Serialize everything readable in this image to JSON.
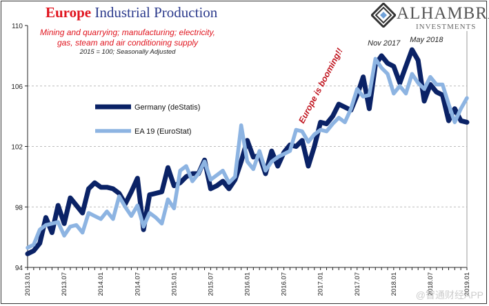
{
  "title": {
    "part1": "Europe",
    "part2": "Industrial Production"
  },
  "subtitle_line1": "Mining and quarrying; manufacturing; electricity,",
  "subtitle_line2": "gas, steam and air conditioning supply",
  "note": "2015 = 100; Seasonally Adjusted",
  "logo": {
    "name": "ALHAMBRA",
    "sub": "INVESTMENTS",
    "icon": "diamond-lattice-icon"
  },
  "watermark": "@智通财经APP",
  "colors": {
    "germany": "#0a2266",
    "ea19": "#8db4e2",
    "title_red": "#e0141e",
    "title_blue": "#2b3a8c",
    "annotation_red": "#c0141e"
  },
  "chart_data": {
    "type": "line",
    "title": "Europe Industrial Production",
    "ylim": [
      94,
      110
    ],
    "yticks": [
      94,
      98,
      102,
      106,
      110
    ],
    "grid": "horizontal dashed",
    "legend_placement": "left-middle",
    "x_start": "2013.01",
    "x_end": "2019.01",
    "frequency": "monthly",
    "xtick_labels": [
      "2013.01",
      "2013.07",
      "2014.01",
      "2014.07",
      "2015.01",
      "2015.07",
      "2016.01",
      "2016.07",
      "2017.01",
      "2017.07",
      "2018.01",
      "2018.07",
      "2019.01"
    ],
    "series": [
      {
        "name": "Germany (deStatis)",
        "values": [
          94.9,
          95.1,
          95.6,
          97.3,
          96.3,
          98.1,
          96.9,
          98.6,
          98.1,
          97.6,
          99.2,
          99.6,
          99.3,
          99.3,
          99.2,
          98.9,
          98.2,
          99.0,
          99.9,
          96.5,
          98.8,
          98.9,
          99.0,
          100.6,
          99.4,
          99.6,
          100.0,
          100.2,
          100.2,
          101.1,
          99.2,
          99.4,
          99.7,
          99.2,
          99.8,
          101.0,
          102.4,
          101.3,
          101.4,
          100.2,
          101.7,
          100.7,
          101.6,
          102.1,
          102.0,
          102.4,
          100.7,
          102.0,
          103.6,
          103.5,
          104.0,
          104.8,
          104.6,
          104.4,
          105.4,
          106.6,
          104.5,
          107.4,
          108.0,
          107.5,
          107.3,
          106.2,
          107.3,
          108.4,
          107.7,
          105.0,
          106.1,
          105.6,
          105.4,
          103.7,
          104.5,
          103.7,
          103.6
        ]
      },
      {
        "name": "EA 19 (EuroStat)",
        "values": [
          95.3,
          95.5,
          96.5,
          96.8,
          96.9,
          97.0,
          96.1,
          96.7,
          96.8,
          96.3,
          97.6,
          97.4,
          97.2,
          97.7,
          97.2,
          98.7,
          98.0,
          97.4,
          98.1,
          96.7,
          97.6,
          97.3,
          96.9,
          98.5,
          97.9,
          100.4,
          100.7,
          99.7,
          100.2,
          101.0,
          99.8,
          100.1,
          100.4,
          99.6,
          100.0,
          103.4,
          101.0,
          100.5,
          101.7,
          100.4,
          101.0,
          101.3,
          101.5,
          101.7,
          103.1,
          103.0,
          102.3,
          102.8,
          103.1,
          103.0,
          103.5,
          103.9,
          103.6,
          104.5,
          105.8,
          105.3,
          105.4,
          107.8,
          107.2,
          106.8,
          105.5,
          106.0,
          105.5,
          106.8,
          106.2,
          105.8,
          106.6,
          106.1,
          106.1,
          104.8,
          103.6,
          104.5,
          105.2
        ]
      }
    ],
    "annotations": [
      {
        "text": "Nov 2017",
        "month_index": 58
      },
      {
        "text": "May 2018",
        "month_index": 64
      },
      {
        "text": "Europe is booming!!",
        "month_index": 48
      }
    ]
  }
}
